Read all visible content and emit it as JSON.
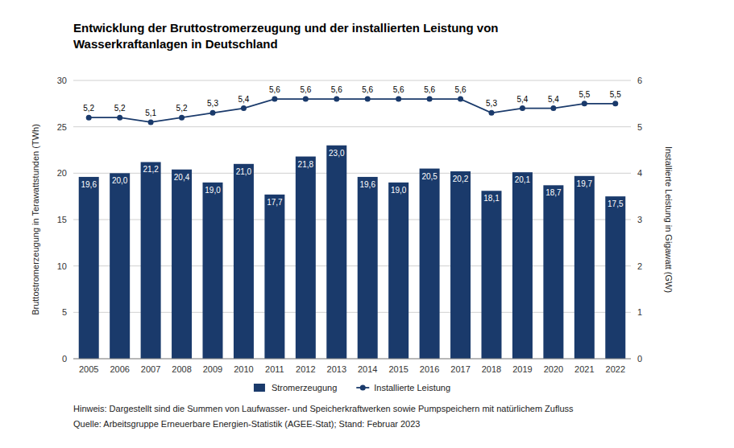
{
  "chart_data": {
    "type": "bar",
    "title": "Entwicklung der Bruttostromerzeugung und der installierten Leistung von",
    "subtitle": "Wasserkraftanlagen in Deutschland",
    "categories": [
      "2005",
      "2006",
      "2007",
      "2008",
      "2009",
      "2010",
      "2011",
      "2012",
      "2013",
      "2014",
      "2015",
      "2016",
      "2017",
      "2018",
      "2019",
      "2020",
      "2021",
      "2022"
    ],
    "series": [
      {
        "name": "Stromerzeugung",
        "type": "bar",
        "color": "#1a3a6b",
        "values": [
          19.6,
          20.0,
          21.2,
          20.4,
          19.0,
          21.0,
          17.7,
          21.8,
          23.0,
          19.6,
          19.0,
          20.5,
          20.2,
          18.1,
          20.1,
          18.7,
          19.7,
          17.5
        ],
        "value_labels": [
          "19,6",
          "20,0",
          "21,2",
          "20,4",
          "19,0",
          "21,0",
          "17,7",
          "21,8",
          "23,0",
          "19,6",
          "19,0",
          "20,5",
          "20,2",
          "18,1",
          "20,1",
          "18,7",
          "19,7",
          "17,5"
        ]
      },
      {
        "name": "Installierte Leistung",
        "type": "line",
        "color": "#1a3a6b",
        "marker": "circle",
        "axis": "y2",
        "values": [
          5.2,
          5.2,
          5.1,
          5.2,
          5.3,
          5.4,
          5.6,
          5.6,
          5.6,
          5.6,
          5.6,
          5.6,
          5.6,
          5.3,
          5.4,
          5.4,
          5.5,
          5.5
        ],
        "value_labels": [
          "5,2",
          "5,2",
          "5,1",
          "5,2",
          "5,3",
          "5,4",
          "5,6",
          "5,6",
          "5,6",
          "5,6",
          "5,6",
          "5,6",
          "5,6",
          "5,3",
          "5,4",
          "5,4",
          "5,5",
          "5,5"
        ]
      }
    ],
    "ylabel": "Bruttostromerzeugung in Terawattstunden (TWh)",
    "y2label": "Installierte Leistung in Gigawatt (GW)",
    "ylim": [
      0,
      30
    ],
    "yticks": [
      0,
      5,
      10,
      15,
      20,
      25,
      30
    ],
    "y2lim": [
      0,
      6
    ],
    "y2ticks": [
      0,
      1,
      2,
      3,
      4,
      5,
      6
    ],
    "grid": true,
    "legend": "bottom",
    "data_labels": true,
    "annotations": [
      "Hinweis: Dargestellt sind die Summen von Laufwasser- und Speicherkraftwerken sowie Pumpspeichern mit natürlichem Zufluss",
      "Quelle: Arbeitsgruppe Erneuerbare Energien-Statistik (AGEE-Stat); Stand: Februar 2023"
    ]
  }
}
